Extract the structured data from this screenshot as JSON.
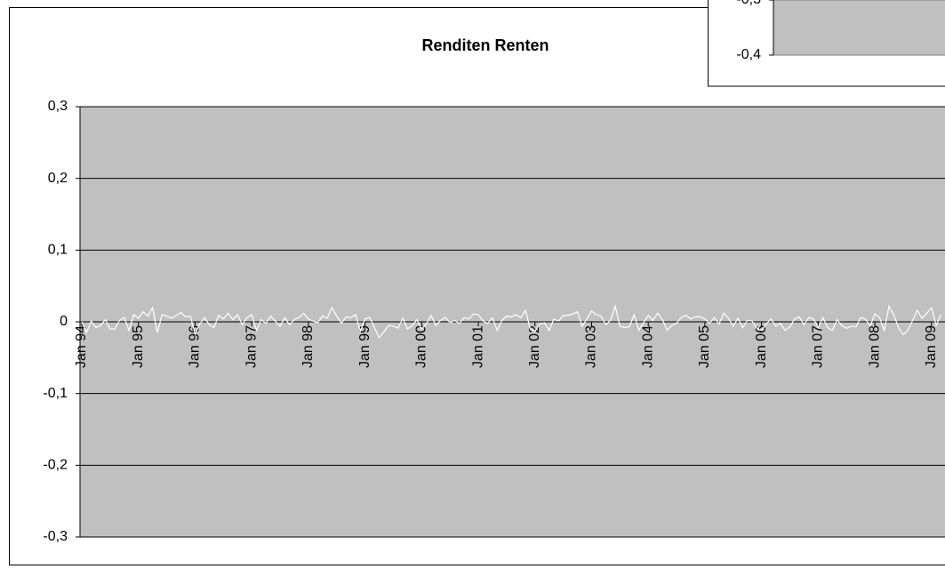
{
  "chart_data": [
    {
      "type": "line",
      "title": "Renditen Renten",
      "categories": [
        "Jan 94",
        null,
        null,
        null,
        null,
        null,
        null,
        null,
        null,
        null,
        null,
        null,
        "Jan 95",
        null,
        null,
        null,
        null,
        null,
        null,
        null,
        null,
        null,
        null,
        null,
        "Jan 96",
        null,
        null,
        null,
        null,
        null,
        null,
        null,
        null,
        null,
        null,
        null,
        "Jan 97",
        null,
        null,
        null,
        null,
        null,
        null,
        null,
        null,
        null,
        null,
        null,
        "Jan 98",
        null,
        null,
        null,
        null,
        null,
        null,
        null,
        null,
        null,
        null,
        null,
        "Jan 99",
        null,
        null,
        null,
        null,
        null,
        null,
        null,
        null,
        null,
        null,
        null,
        "Jan 00",
        null,
        null,
        null,
        null,
        null,
        null,
        null,
        null,
        null,
        null,
        null,
        "Jan 01",
        null,
        null,
        null,
        null,
        null,
        null,
        null,
        null,
        null,
        null,
        null,
        "Jan 02",
        null,
        null,
        null,
        null,
        null,
        null,
        null,
        null,
        null,
        null,
        null,
        "Jan 03",
        null,
        null,
        null,
        null,
        null,
        null,
        null,
        null,
        null,
        null,
        null,
        "Jan 04",
        null,
        null,
        null,
        null,
        null,
        null,
        null,
        null,
        null,
        null,
        null,
        "Jan 05",
        null,
        null,
        null,
        null,
        null,
        null,
        null,
        null,
        null,
        null,
        null,
        "Jan 06",
        null,
        null,
        null,
        null,
        null,
        null,
        null,
        null,
        null,
        null,
        null,
        "Jan 07",
        null,
        null,
        null,
        null,
        null,
        null,
        null,
        null,
        null,
        null,
        null,
        "Jan 08",
        null,
        null,
        null,
        null,
        null,
        null,
        null,
        null,
        null,
        null,
        null,
        "Jan 09",
        null,
        null
      ],
      "series": [
        {
          "color": "#ffffff",
          "values": [
            0,
            -0.015,
            0.001,
            -0.008,
            -0.005,
            0.003,
            -0.01,
            -0.01,
            0.002,
            0.006,
            -0.012,
            0.01,
            0.005,
            0.014,
            0.008,
            0.02,
            -0.015,
            0.01,
            0.008,
            0.005,
            0.009,
            0.013,
            0.007,
            0.008,
            -0.017,
            -0.003,
            0.006,
            -0.004,
            -0.008,
            0.009,
            0.004,
            0.012,
            0.003,
            0.01,
            -0.004,
            0.006,
            0.01,
            -0.012,
            0.003,
            -0.002,
            0.008,
            0.001,
            -0.006,
            0.006,
            -0.004,
            0.003,
            0.006,
            0.012,
            0.004,
            0.001,
            -0.001,
            0.008,
            0.005,
            0.02,
            0.008,
            -0.002,
            0.007,
            0.006,
            0.01,
            -0.013,
            0.004,
            0.006,
            -0.008,
            -0.022,
            -0.014,
            -0.005,
            -0.006,
            -0.009,
            0.005,
            -0.01,
            -0.005,
            0.003,
            -0.01,
            -0.003,
            0.009,
            -0.005,
            0.002,
            0.006,
            -0.001,
            0.002,
            -0.002,
            0.006,
            0.004,
            0.011,
            0.01,
            0.001,
            -0.002,
            0.006,
            -0.012,
            0.002,
            0.008,
            0.007,
            0.01,
            0.006,
            0.016,
            -0.01,
            -0.013,
            -0.003,
            -0.001,
            -0.012,
            0.004,
            0.001,
            0.009,
            0.009,
            0.011,
            0.014,
            -0.006,
            0.004,
            0.015,
            0.01,
            0.008,
            -0.004,
            0.002,
            0.022,
            -0.006,
            -0.008,
            -0.007,
            0.01,
            -0.012,
            -0.001,
            0.009,
            0.002,
            0.012,
            0.003,
            -0.012,
            -0.005,
            -0.002,
            0.006,
            0.009,
            0.004,
            0.007,
            0.007,
            0.004,
            -0.002,
            0.006,
            -0.003,
            0.012,
            0.005,
            -0.006,
            0.005,
            -0.008,
            0.002,
            0.001,
            -0.009,
            -0.012,
            -0.003,
            0.004,
            -0.006,
            -0.002,
            -0.012,
            -0.007,
            0.004,
            0.007,
            -0.004,
            0.006,
            0.004,
            -0.008,
            0.006,
            -0.008,
            -0.012,
            0.003,
            -0.005,
            -0.009,
            -0.006,
            -0.007,
            0.006,
            0.004,
            -0.006,
            0.011,
            0.006,
            -0.012,
            0.022,
            0.01,
            -0.008,
            -0.018,
            -0.012,
            0.002,
            0.016,
            0.005,
            0.012,
            0.02,
            -0.005,
            0.01
          ]
        }
      ],
      "ylim": [
        -0.3,
        0.3
      ],
      "yticks": [
        {
          "value": 0.3,
          "label": "0,3"
        },
        {
          "value": 0.2,
          "label": "0,2"
        },
        {
          "value": 0.1,
          "label": "0,1"
        },
        0,
        {
          "value": -0.1,
          "label": "-0,1"
        },
        {
          "value": -0.2,
          "label": "-0,2"
        },
        {
          "value": -0.3,
          "label": "-0,3"
        }
      ],
      "grid": true,
      "plot_color": "#c0c0c0"
    },
    {
      "type": "line",
      "ylim": [
        -0.4,
        -0.3
      ],
      "yticks": [
        {
          "value": -0.3,
          "label": "-0,3"
        },
        {
          "value": -0.4,
          "label": "-0,4"
        }
      ],
      "plot_color": "#c0c0c0"
    }
  ]
}
